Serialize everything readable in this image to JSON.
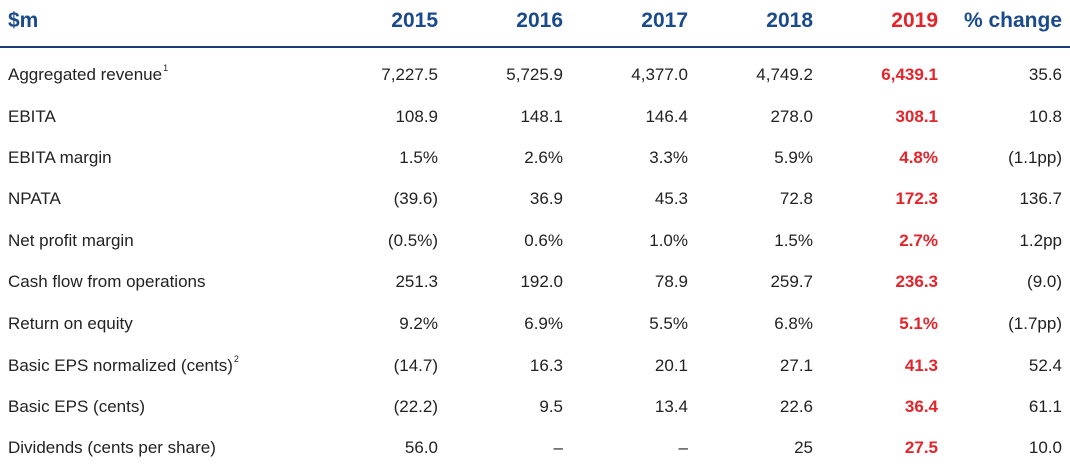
{
  "header": {
    "unit": "$m",
    "years": [
      "2015",
      "2016",
      "2017",
      "2018",
      "2019"
    ],
    "change": "% change"
  },
  "colors": {
    "header_blue": "#1b4a8c",
    "highlight_red": "#e3242b",
    "rule": "#1b3d79"
  },
  "rows": [
    {
      "label": "Aggregated revenue",
      "note": "1",
      "values": [
        "7,227.5",
        "5,725.9",
        "4,377.0",
        "4,749.2",
        "6,439.1",
        "35.6"
      ]
    },
    {
      "label": "EBITA",
      "note": "",
      "values": [
        "108.9",
        "148.1",
        "146.4",
        "278.0",
        "308.1",
        "10.8"
      ]
    },
    {
      "label": "EBITA margin",
      "note": "",
      "values": [
        "1.5%",
        "2.6%",
        "3.3%",
        "5.9%",
        "4.8%",
        "(1.1pp)"
      ]
    },
    {
      "label": "NPATA",
      "note": "",
      "values": [
        "(39.6)",
        "36.9",
        "45.3",
        "72.8",
        "172.3",
        "136.7"
      ]
    },
    {
      "label": "Net profit margin",
      "note": "",
      "values": [
        "(0.5%)",
        "0.6%",
        "1.0%",
        "1.5%",
        "2.7%",
        "1.2pp"
      ]
    },
    {
      "label": "Cash flow from operations",
      "note": "",
      "values": [
        "251.3",
        "192.0",
        "78.9",
        "259.7",
        "236.3",
        "(9.0)"
      ]
    },
    {
      "label": "Return on equity",
      "note": "",
      "values": [
        "9.2%",
        "6.9%",
        "5.5%",
        "6.8%",
        "5.1%",
        "(1.7pp)"
      ]
    },
    {
      "label": "Basic EPS normalized (cents)",
      "note": "2",
      "values": [
        "(14.7)",
        "16.3",
        "20.1",
        "27.1",
        "41.3",
        "52.4"
      ]
    },
    {
      "label": "Basic EPS (cents)",
      "note": "",
      "values": [
        "(22.2)",
        "9.5",
        "13.4",
        "22.6",
        "36.4",
        "61.1"
      ]
    },
    {
      "label": "Dividends (cents per share)",
      "note": "",
      "values": [
        "56.0",
        "–",
        "–",
        "25",
        "27.5",
        "10.0"
      ]
    }
  ]
}
